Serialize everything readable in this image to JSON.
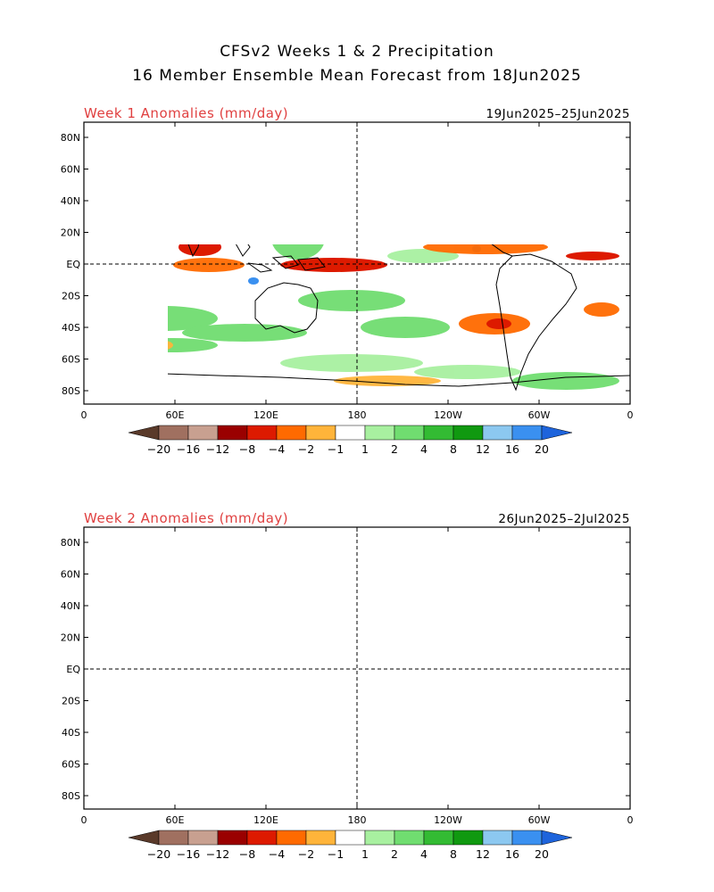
{
  "title_line1": "CFSv2 Weeks 1 & 2 Precipitation",
  "title_line2": "16 Member Ensemble Mean Forecast from 18Jun2025",
  "panels": [
    {
      "label": "Week 1 Anomalies (mm/day)",
      "dates": "19Jun2025–25Jun2025"
    },
    {
      "label": "Week 2 Anomalies (mm/day)",
      "dates": "26Jun2025–2Jul2025"
    }
  ],
  "lat_ticks": [
    "80N",
    "60N",
    "40N",
    "20N",
    "EQ",
    "20S",
    "40S",
    "60S",
    "80S"
  ],
  "lon_ticks": [
    "0",
    "60E",
    "120E",
    "180",
    "120W",
    "60W",
    "0"
  ],
  "colorbar": {
    "labels": [
      "−20",
      "−16",
      "−12",
      "−8",
      "−4",
      "−2",
      "−1",
      "1",
      "2",
      "4",
      "8",
      "12",
      "16",
      "20"
    ],
    "colors": [
      "#5a3a2a",
      "#a07060",
      "#c8a090",
      "#9a0000",
      "#dd1a00",
      "#ff6a00",
      "#ffb43a",
      "#ffffff",
      "#a8f0a0",
      "#70dd70",
      "#33bb33",
      "#109910",
      "#8cc8f0",
      "#3a90f0",
      "#1e64dc"
    ]
  }
}
